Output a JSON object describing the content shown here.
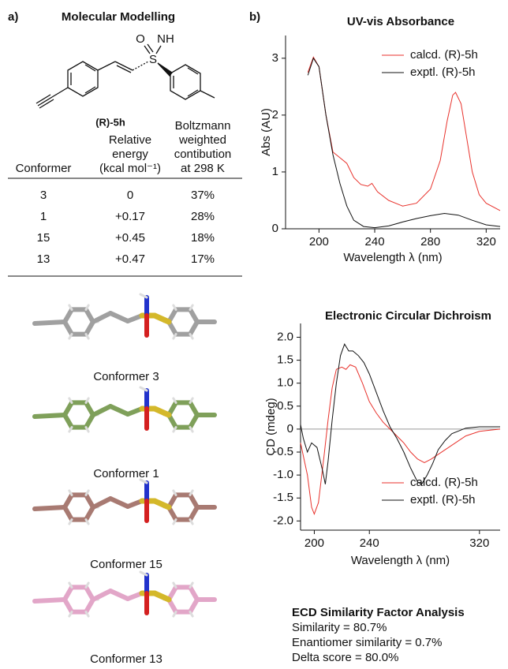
{
  "panel_a": {
    "label": "a)",
    "title": "Molecular Modelling",
    "molecule": {
      "atoms": [
        "O",
        "NH",
        "S"
      ],
      "label": "(R)-5h"
    },
    "table": {
      "headers": [
        [
          "Conformer"
        ],
        [
          "Relative",
          "energy",
          "(kcal mol⁻¹)"
        ],
        [
          "Boltzmann",
          "weighted",
          "contibution",
          "at 298 K"
        ]
      ],
      "rows": [
        [
          "3",
          "0",
          "37%"
        ],
        [
          "1",
          "+0.17",
          "28%"
        ],
        [
          "15",
          "+0.45",
          "18%"
        ],
        [
          "13",
          "+0.47",
          "17%"
        ]
      ]
    },
    "conformers": [
      "Conformer 3",
      "Conformer 1",
      "Conformer 15",
      "Conformer 13"
    ]
  },
  "panel_b": {
    "label": "b)",
    "similarity": {
      "title": "ECD Similarity Factor Analysis",
      "lines": [
        "Similarity = 80.7%",
        "Enantiomer similarity = 0.7%",
        "Delta score = 80.0%"
      ]
    }
  },
  "chart_data": [
    {
      "type": "line",
      "title": "UV-vis Absorbance",
      "x_label": "Wavelength λ (nm)",
      "y_label": "Abs (AU)",
      "xlim": [
        176,
        330
      ],
      "ylim": [
        0,
        3.4
      ],
      "xticks": [
        200,
        240,
        280,
        320
      ],
      "yticks": [
        0,
        1,
        2,
        3
      ],
      "legend": "upper right",
      "zero_line": false,
      "series": [
        {
          "name": "calcd. (R)-5h",
          "color": "#e8322c",
          "x": [
            192,
            196,
            200,
            205,
            210,
            215,
            220,
            225,
            230,
            235,
            238,
            242,
            250,
            260,
            270,
            280,
            287,
            292,
            296,
            298,
            302,
            306,
            310,
            315,
            320,
            330
          ],
          "values": [
            2.75,
            3.02,
            2.85,
            2.0,
            1.35,
            1.25,
            1.15,
            0.9,
            0.78,
            0.75,
            0.8,
            0.65,
            0.5,
            0.4,
            0.45,
            0.7,
            1.2,
            1.9,
            2.35,
            2.4,
            2.2,
            1.6,
            1.0,
            0.6,
            0.45,
            0.32
          ]
        },
        {
          "name": "exptl. (R)-5h",
          "color": "#111111",
          "x": [
            192,
            196,
            200,
            205,
            210,
            215,
            220,
            225,
            232,
            240,
            250,
            260,
            270,
            280,
            290,
            300,
            310,
            320,
            330
          ],
          "values": [
            2.7,
            3.0,
            2.85,
            2.0,
            1.3,
            0.8,
            0.4,
            0.15,
            0.04,
            0.02,
            0.05,
            0.12,
            0.18,
            0.23,
            0.27,
            0.24,
            0.15,
            0.07,
            0.04
          ]
        }
      ]
    },
    {
      "type": "line",
      "title": "Electronic Circular Dichroism",
      "x_label": "Wavelength λ (nm)",
      "y_label": "CD (mdeg)",
      "xlim": [
        190,
        335
      ],
      "ylim": [
        -2.2,
        2.3
      ],
      "xticks": [
        200,
        240,
        320
      ],
      "yticks": [
        {
          "value": 2,
          "label": "2.0"
        },
        1.5,
        {
          "value": 1,
          "label": "1.0"
        },
        0.5,
        0,
        -0.5,
        {
          "value": -1,
          "label": "-1.0"
        },
        -1.5,
        {
          "value": -2,
          "label": "-2.0"
        }
      ],
      "legend": "lower right",
      "zero_line": true,
      "series": [
        {
          "name": "calcd. (R)-5h",
          "color": "#e8322c",
          "x": [
            190,
            195,
            198,
            200,
            203,
            207,
            210,
            213,
            216,
            220,
            223,
            226,
            230,
            235,
            240,
            245,
            250,
            255,
            260,
            265,
            270,
            275,
            280,
            285,
            290,
            300,
            310,
            320,
            335
          ],
          "values": [
            -0.3,
            -1.0,
            -1.7,
            -1.85,
            -1.6,
            -0.6,
            0.2,
            0.9,
            1.3,
            1.35,
            1.3,
            1.4,
            1.35,
            1.0,
            0.6,
            0.35,
            0.15,
            0.0,
            -0.15,
            -0.3,
            -0.5,
            -0.65,
            -0.73,
            -0.65,
            -0.55,
            -0.35,
            -0.15,
            -0.05,
            0.0
          ]
        },
        {
          "name": "exptl. (R)-5h",
          "color": "#111111",
          "x": [
            190,
            192,
            195,
            198,
            202,
            206,
            208,
            210,
            213,
            216,
            219,
            222,
            225,
            228,
            232,
            236,
            240,
            245,
            250,
            255,
            260,
            265,
            270,
            275,
            278,
            282,
            286,
            290,
            295,
            300,
            310,
            320,
            335
          ],
          "values": [
            0.1,
            -0.2,
            -0.5,
            -0.3,
            -0.4,
            -0.9,
            -1.2,
            -0.7,
            0.2,
            1.0,
            1.6,
            1.85,
            1.7,
            1.7,
            1.6,
            1.45,
            1.2,
            0.8,
            0.4,
            0.05,
            -0.2,
            -0.5,
            -0.85,
            -1.15,
            -1.2,
            -1.0,
            -0.75,
            -0.45,
            -0.25,
            -0.1,
            0.02,
            0.05,
            0.05
          ]
        }
      ]
    }
  ]
}
